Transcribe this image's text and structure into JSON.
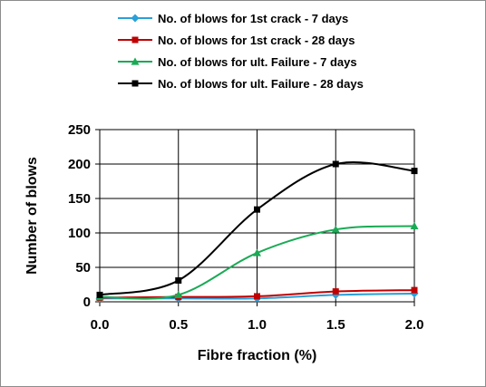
{
  "chart_data": {
    "type": "line",
    "xlabel": "Fibre fraction (%)",
    "ylabel": "Number of blows",
    "xlim": [
      0,
      2
    ],
    "ylim": [
      0,
      250
    ],
    "xticks": [
      "0.0",
      "0.5",
      "1.0",
      "1.5",
      "2.0"
    ],
    "yticks": [
      "0",
      "50",
      "100",
      "150",
      "200",
      "250"
    ],
    "x": [
      0.0,
      0.5,
      1.0,
      1.5,
      2.0
    ],
    "grid": "vertical and horizontal major gridlines",
    "legend_position": "top",
    "series": [
      {
        "name": "No. of blows for 1st crack - 7 days",
        "values": [
          5,
          5,
          5,
          10,
          12
        ],
        "color": "#2aa0d8",
        "marker": "diamond"
      },
      {
        "name": "No. of blows for 1st crack - 28 days",
        "values": [
          6,
          7,
          8,
          15,
          17
        ],
        "color": "#c00000",
        "marker": "square"
      },
      {
        "name": "No. of blows for ult. Failure - 7 days",
        "values": [
          7,
          10,
          71,
          105,
          110
        ],
        "color": "#1aaa55",
        "marker": "triangle"
      },
      {
        "name": "No. of blows for ult. Failure - 28 days",
        "values": [
          10,
          31,
          134,
          200,
          190
        ],
        "color": "#000000",
        "marker": "square"
      }
    ]
  }
}
